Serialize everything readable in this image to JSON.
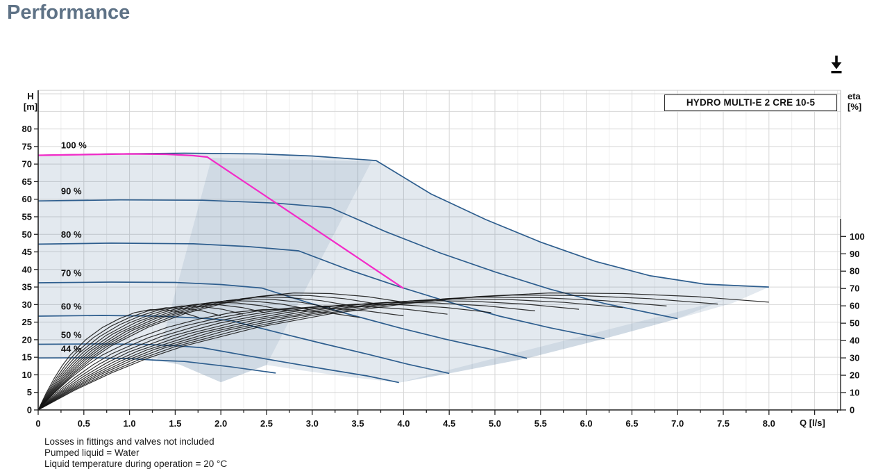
{
  "page": {
    "title": "Performance",
    "title_color": "#5e7286",
    "background": "#ffffff"
  },
  "header": {
    "icons": {
      "download": "download-arrow"
    }
  },
  "chart_data": {
    "type": "line",
    "title_box": "HYDRO MULTI-E 2 CRE 10-5",
    "x_label": "Q [l/s]",
    "y_left_label": "H\n[m]",
    "y_right_label": "eta\n[%]",
    "x_range": [
      0,
      8.78
    ],
    "y_left_range": [
      0,
      91
    ],
    "y_right_range": [
      0,
      100
    ],
    "grid": "on",
    "x_minor_step": 0.25,
    "x_ticks": [
      {
        "v": 0,
        "label": "0"
      },
      {
        "v": 0.5,
        "label": "0.5"
      },
      {
        "v": 1,
        "label": "1.0"
      },
      {
        "v": 1.5,
        "label": "1.5"
      },
      {
        "v": 2,
        "label": "2.0"
      },
      {
        "v": 2.5,
        "label": "2.5"
      },
      {
        "v": 3,
        "label": "3.0"
      },
      {
        "v": 3.5,
        "label": "3.5"
      },
      {
        "v": 4,
        "label": "4.0"
      },
      {
        "v": 4.5,
        "label": "4.5"
      },
      {
        "v": 5,
        "label": "5.0"
      },
      {
        "v": 5.5,
        "label": "5.5"
      },
      {
        "v": 6,
        "label": "6.0"
      },
      {
        "v": 6.5,
        "label": "6.5"
      },
      {
        "v": 7,
        "label": "7.0"
      },
      {
        "v": 7.5,
        "label": "7.5"
      },
      {
        "v": 8,
        "label": "8.0"
      }
    ],
    "y_ticks": [
      0,
      5,
      10,
      15,
      20,
      25,
      30,
      35,
      40,
      45,
      50,
      55,
      60,
      65,
      70,
      75,
      80
    ],
    "eta_ticks": [
      0,
      10,
      20,
      30,
      40,
      50,
      60,
      70,
      80,
      90,
      100
    ],
    "speed_curves": [
      {
        "label": "100 %",
        "label_at": [
          0.25,
          75.3
        ],
        "points": [
          [
            0,
            72.5
          ],
          [
            0.8,
            72.9
          ],
          [
            1.6,
            73.1
          ],
          [
            2.4,
            72.9
          ],
          [
            3.0,
            72.3
          ],
          [
            3.7,
            71.0
          ],
          [
            4.3,
            61.5
          ],
          [
            4.9,
            54.2
          ],
          [
            5.5,
            47.8
          ],
          [
            6.1,
            42.3
          ],
          [
            6.7,
            38.2
          ],
          [
            7.3,
            35.8
          ],
          [
            8.0,
            35.0
          ]
        ]
      },
      {
        "label": "90 %",
        "label_at": [
          0.25,
          62.2
        ],
        "points": [
          [
            0,
            59.5
          ],
          [
            0.9,
            59.8
          ],
          [
            1.8,
            59.7
          ],
          [
            2.6,
            58.9
          ],
          [
            3.2,
            57.6
          ],
          [
            3.8,
            50.8
          ],
          [
            4.4,
            44.7
          ],
          [
            5.0,
            39.3
          ],
          [
            5.6,
            34.4
          ],
          [
            6.2,
            30.3
          ],
          [
            6.7,
            27.6
          ],
          [
            7.0,
            26.0
          ]
        ]
      },
      {
        "label": "80 %",
        "label_at": [
          0.25,
          49.9
        ],
        "points": [
          [
            0,
            47.2
          ],
          [
            0.8,
            47.5
          ],
          [
            1.7,
            47.3
          ],
          [
            2.3,
            46.5
          ],
          [
            2.85,
            45.3
          ],
          [
            3.4,
            39.9
          ],
          [
            3.95,
            35.1
          ],
          [
            4.5,
            30.7
          ],
          [
            5.05,
            26.7
          ],
          [
            5.6,
            23.4
          ],
          [
            6.0,
            21.3
          ],
          [
            6.2,
            20.3
          ]
        ]
      },
      {
        "label": "70 %",
        "label_at": [
          0.25,
          38.9
        ],
        "points": [
          [
            0,
            36.2
          ],
          [
            0.8,
            36.4
          ],
          [
            1.5,
            36.3
          ],
          [
            2.0,
            35.7
          ],
          [
            2.45,
            34.7
          ],
          [
            2.95,
            30.6
          ],
          [
            3.45,
            26.9
          ],
          [
            3.95,
            23.4
          ],
          [
            4.45,
            20.2
          ],
          [
            4.95,
            17.3
          ],
          [
            5.35,
            14.7
          ]
        ]
      },
      {
        "label": "60 %",
        "label_at": [
          0.25,
          29.4
        ],
        "points": [
          [
            0,
            26.7
          ],
          [
            0.7,
            26.9
          ],
          [
            1.3,
            26.7
          ],
          [
            1.75,
            26.2
          ],
          [
            2.1,
            25.5
          ],
          [
            2.6,
            22.2
          ],
          [
            3.1,
            19.0
          ],
          [
            3.6,
            15.9
          ],
          [
            4.05,
            13.0
          ],
          [
            4.5,
            10.4
          ]
        ]
      },
      {
        "label": "50 %",
        "label_at": [
          0.25,
          21.3
        ],
        "points": [
          [
            0,
            18.7
          ],
          [
            0.6,
            18.8
          ],
          [
            1.15,
            18.7
          ],
          [
            1.5,
            18.3
          ],
          [
            1.8,
            17.7
          ],
          [
            2.25,
            15.6
          ],
          [
            2.7,
            13.6
          ],
          [
            3.15,
            11.6
          ],
          [
            3.6,
            9.7
          ],
          [
            3.95,
            7.8
          ]
        ]
      },
      {
        "label": "44 %",
        "label_at": [
          0.25,
          17.3
        ],
        "points": [
          [
            0,
            14.8
          ],
          [
            0.6,
            14.85
          ],
          [
            1.0,
            14.6
          ],
          [
            1.3,
            14.15
          ],
          [
            1.6,
            13.8
          ],
          [
            2.1,
            12.3
          ],
          [
            2.6,
            10.5
          ]
        ]
      }
    ],
    "duty_curve": {
      "color": "#f32bc8",
      "points": [
        [
          0,
          72.5
        ],
        [
          0.5,
          72.7
        ],
        [
          1.0,
          72.9
        ],
        [
          1.4,
          72.8
        ],
        [
          1.7,
          72.4
        ],
        [
          1.85,
          72.0
        ],
        [
          2.3,
          64.2
        ],
        [
          2.8,
          55.5
        ],
        [
          3.3,
          46.8
        ],
        [
          3.65,
          40.7
        ],
        [
          4.0,
          34.6
        ]
      ]
    },
    "envelope": {
      "bottom": [
        [
          0,
          14.8
        ],
        [
          0.6,
          14.85
        ],
        [
          1.0,
          14.6
        ],
        [
          1.3,
          14.15
        ],
        [
          1.55,
          12.9
        ],
        [
          2.0,
          7.9
        ],
        [
          2.5,
          12.8
        ],
        [
          2.9,
          11.2
        ],
        [
          3.4,
          9.4
        ],
        [
          3.95,
          7.8
        ],
        [
          4.5,
          10.4
        ],
        [
          5.35,
          14.7
        ],
        [
          6.2,
          20.3
        ],
        [
          7.0,
          26.0
        ],
        [
          7.6,
          30.4
        ],
        [
          8.0,
          35.0
        ]
      ],
      "overlays": [
        [
          [
            1.3,
            14.15
          ],
          [
            1.9,
            71.8
          ],
          [
            3.65,
            70.8
          ],
          [
            2.5,
            12.8
          ],
          [
            2.0,
            7.9
          ],
          [
            1.55,
            12.9
          ]
        ],
        [
          [
            3.95,
            7.8
          ],
          [
            7.5,
            31.2
          ],
          [
            7.0,
            26.0
          ],
          [
            6.2,
            20.3
          ],
          [
            5.35,
            14.7
          ],
          [
            4.5,
            10.4
          ]
        ]
      ]
    },
    "eta_family": {
      "shape_x": [
        0,
        0.05,
        0.1,
        0.15,
        0.2,
        0.3,
        0.4,
        0.5,
        0.6,
        0.7,
        0.8,
        0.9,
        1.0
      ],
      "shape_f": [
        0,
        0.16,
        0.3,
        0.42,
        0.52,
        0.67,
        0.78,
        0.86,
        0.92,
        0.95,
        0.945,
        0.92,
        0.875
      ],
      "speeds": [
        0.44,
        0.5,
        0.56,
        0.62,
        0.68,
        0.74,
        0.8,
        0.86,
        0.93,
        1.0
      ],
      "pumps": [
        1,
        2
      ],
      "q_full_per_pump": 4.0,
      "eta_max_base": 71,
      "eta_max_slope": 18,
      "eta_to_h": 0.494
    },
    "style": {
      "curve_color": "#2e5e8e",
      "fill": "rgba(59,98,145,0.14)",
      "overlay": "rgba(59,98,145,0.11)",
      "grid_minor": "#ececec",
      "grid_major": "#d7d7d7",
      "axis": "#222222",
      "eta_color": "#161616"
    },
    "notes": [
      "Losses in fittings and valves not included",
      "Pumped liquid = Water",
      "Liquid temperature during operation = 20 °C"
    ]
  }
}
